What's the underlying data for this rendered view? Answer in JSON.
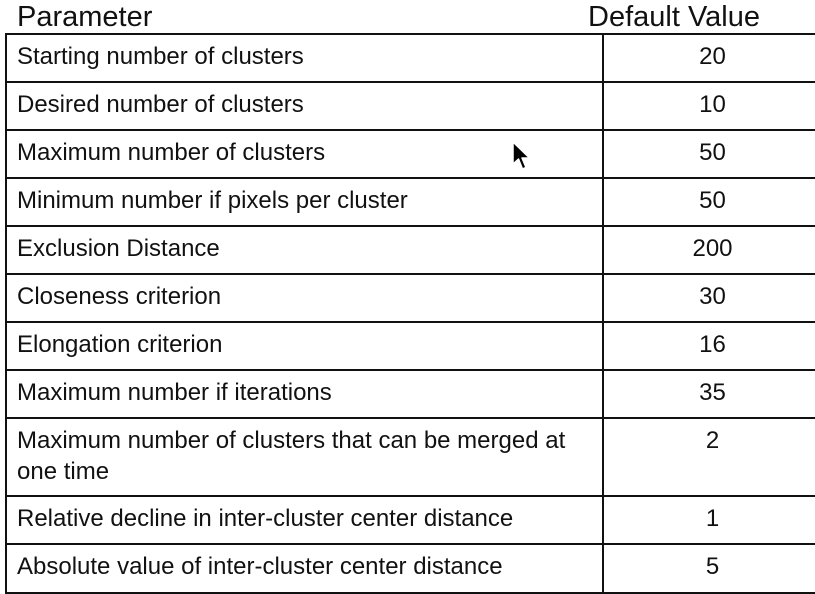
{
  "header": {
    "parameter_label": "Parameter",
    "default_value_label": "Default Value"
  },
  "rows": [
    {
      "name": "Starting number of clusters",
      "value": "20"
    },
    {
      "name": "Desired number of clusters",
      "value": "10"
    },
    {
      "name": "Maximum number of clusters",
      "value": "50"
    },
    {
      "name": "Minimum number if pixels per cluster",
      "value": "50"
    },
    {
      "name": "Exclusion Distance",
      "value": "200"
    },
    {
      "name": "Closeness criterion",
      "value": "30"
    },
    {
      "name": "Elongation criterion",
      "value": "16"
    },
    {
      "name": "Maximum number if iterations",
      "value": "35"
    },
    {
      "name": "Maximum number of clusters that can be merged at one time",
      "value": "2"
    },
    {
      "name": "Relative decline in inter-cluster center distance",
      "value": "1"
    },
    {
      "name": "Absolute value of inter-cluster center distance",
      "value": "5"
    }
  ],
  "cursor_icon": "mouse-pointer-icon"
}
